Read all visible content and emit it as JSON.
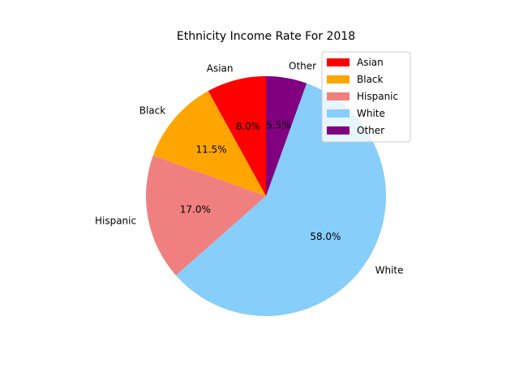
{
  "chart_data": {
    "type": "pie",
    "title": "Ethnicity Income Rate For 2018",
    "labels": [
      "Asian",
      "Black",
      "Hispanic",
      "White",
      "Other"
    ],
    "values": [
      8.0,
      11.5,
      17.0,
      58.0,
      5.5
    ],
    "percent_labels": [
      "8.0%",
      "11.5%",
      "17.0%",
      "58.0%",
      "5.5%"
    ],
    "colors": [
      "#ff0000",
      "#ffa500",
      "#f08080",
      "#87cefa",
      "#800080"
    ],
    "start_angle_deg": 90,
    "direction": "counterclockwise",
    "legend": {
      "placement": "upper right",
      "entries": [
        "Asian",
        "Black",
        "Hispanic",
        "White",
        "Other"
      ]
    }
  }
}
